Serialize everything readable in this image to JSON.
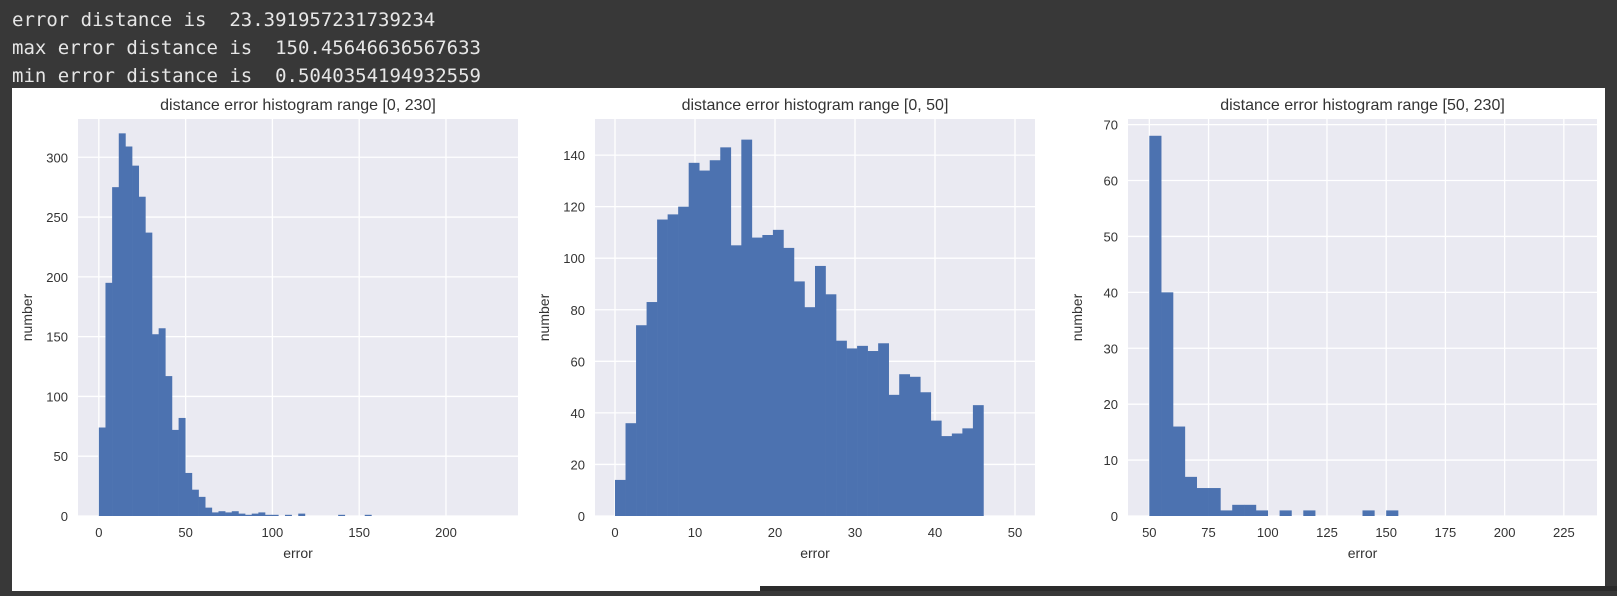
{
  "console": {
    "lines": [
      "error distance is  23.391957231739234",
      "max error distance is  150.45646636567633",
      "min error distance is  0.5040354194932559"
    ]
  },
  "colors": {
    "bar": "#4c72b0",
    "plot_bg": "#eaeaf2",
    "grid": "#ffffff",
    "text": "#333333"
  },
  "chart_data": [
    {
      "type": "bar",
      "title": "distance error histogram range [0, 230]",
      "xlabel": "error",
      "ylabel": "number",
      "xlim": [
        -12,
        241.5
      ],
      "ylim": [
        0,
        332
      ],
      "xticks": [
        0,
        50,
        100,
        150,
        200
      ],
      "yticks": [
        0,
        50,
        100,
        150,
        200,
        250,
        300
      ],
      "grid": true,
      "bin_start": 0,
      "bin_width": 3.83,
      "values": [
        74,
        195,
        275,
        320,
        309,
        293,
        267,
        237,
        152,
        157,
        117,
        72,
        82,
        36,
        22,
        16,
        7,
        3,
        4,
        3,
        4,
        2,
        1,
        2,
        3,
        1,
        1,
        0,
        1,
        0,
        2,
        0,
        0,
        0,
        0,
        0,
        1,
        0,
        0,
        0,
        1,
        0,
        0,
        0,
        0,
        0,
        0,
        0,
        0,
        0,
        0,
        0,
        0,
        0,
        0,
        0,
        0,
        0,
        0,
        0
      ]
    },
    {
      "type": "bar",
      "title": "distance error histogram range [0, 50]",
      "xlabel": "error",
      "ylabel": "number",
      "xlim": [
        -2.5,
        52.5
      ],
      "ylim": [
        0,
        154
      ],
      "xticks": [
        0,
        10,
        20,
        30,
        40,
        50
      ],
      "yticks": [
        0,
        20,
        40,
        60,
        80,
        100,
        120,
        140
      ],
      "grid": true,
      "bin_start": 0,
      "bin_width": 1.3158,
      "values": [
        14,
        36,
        74,
        83,
        115,
        117,
        120,
        137,
        134,
        138,
        143,
        105,
        146,
        108,
        109,
        111,
        104,
        91,
        81,
        97,
        86,
        68,
        65,
        66,
        64,
        67,
        47,
        55,
        54,
        48,
        37,
        31,
        32,
        34,
        43
      ]
    },
    {
      "type": "bar",
      "title": "distance error histogram range [50, 230]",
      "xlabel": "error",
      "ylabel": "number",
      "xlim": [
        41,
        239
      ],
      "ylim": [
        0,
        71
      ],
      "xticks": [
        50,
        75,
        100,
        125,
        150,
        175,
        200,
        225
      ],
      "yticks": [
        0,
        10,
        20,
        30,
        40,
        50,
        60,
        70
      ],
      "grid": true,
      "bin_start": 50,
      "bin_width": 5,
      "values": [
        68,
        40,
        16,
        7,
        5,
        5,
        1,
        2,
        2,
        1,
        0,
        1,
        0,
        1,
        0,
        0,
        0,
        0,
        1,
        0,
        1,
        0,
        0,
        0,
        0,
        0,
        0,
        0,
        0,
        0,
        0,
        0,
        0,
        0,
        0,
        0
      ]
    }
  ]
}
